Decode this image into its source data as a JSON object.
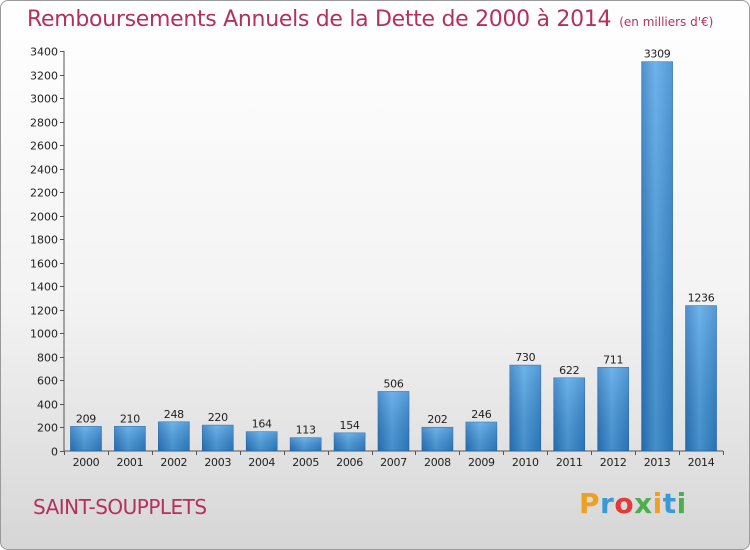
{
  "header": {
    "title": "Remboursements Annuels de la Dette de 2000 à 2014",
    "subtitle": "(en milliers d'€)"
  },
  "footer": {
    "commune": "SAINT-SOUPPLETS",
    "logo": {
      "letters": [
        "P",
        "r",
        "o",
        "x",
        "i",
        "t",
        "i"
      ],
      "colors": [
        "#f0a020",
        "#3a9ad9",
        "#e23a3a",
        "#4cae4c",
        "#f0a020",
        "#3a9ad9",
        "#4cae4c"
      ]
    }
  },
  "chart_data": {
    "type": "bar",
    "categories": [
      "2000",
      "2001",
      "2002",
      "2003",
      "2004",
      "2005",
      "2006",
      "2007",
      "2008",
      "2009",
      "2010",
      "2011",
      "2012",
      "2013",
      "2014"
    ],
    "values": [
      209,
      210,
      248,
      220,
      164,
      113,
      154,
      506,
      202,
      246,
      730,
      622,
      711,
      3309,
      1236
    ],
    "ylim": [
      0,
      3400
    ],
    "yticks": [
      0,
      200,
      400,
      600,
      800,
      1000,
      1200,
      1400,
      1600,
      1800,
      2000,
      2200,
      2400,
      2600,
      2800,
      3000,
      3200,
      3400
    ],
    "grid": false,
    "legend": "none",
    "bar_color": "#3a8fd6"
  }
}
